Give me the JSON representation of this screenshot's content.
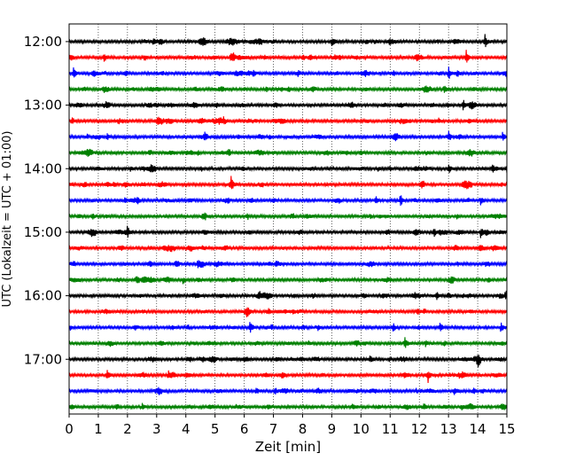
{
  "chart_data": {
    "type": "line",
    "title": "",
    "xlabel": "Zeit  [min]",
    "ylabel": "UTC (Lokalzeit = UTC + 01:00)",
    "xlim": [
      0,
      15
    ],
    "x_ticks": [
      "0",
      "1",
      "2",
      "3",
      "4",
      "5",
      "6",
      "7",
      "8",
      "9",
      "10",
      "11",
      "12",
      "13",
      "14",
      "15"
    ],
    "y_time_range": [
      "11:45",
      "17:45"
    ],
    "y_ticks": [
      "12:00",
      "13:00",
      "14:00",
      "15:00",
      "16:00",
      "17:00"
    ],
    "grid": {
      "vertical_dotted": true
    },
    "trace_interval_minutes": 15,
    "trace_color_cycle": [
      "#000000",
      "#ff0000",
      "#0000ff",
      "#008000"
    ],
    "traces": [
      {
        "start": "12:00",
        "events": [
          [
            9.0,
            1.0
          ],
          [
            14.25,
            1.2
          ]
        ]
      },
      {
        "start": "12:15",
        "events": [
          [
            1.2,
            0.8
          ],
          [
            13.6,
            1.2
          ]
        ]
      },
      {
        "start": "12:30",
        "events": [
          [
            0.15,
            0.6
          ],
          [
            6.3,
            0.8
          ],
          [
            13.0,
            1.1
          ],
          [
            13.3,
            0.8
          ],
          [
            15.0,
            0.7
          ]
        ]
      },
      {
        "start": "12:45",
        "events": [
          [
            7.5,
            0.5
          ],
          [
            12.85,
            0.8
          ]
        ]
      },
      {
        "start": "13:00",
        "events": [
          [
            13.5,
            1.1
          ]
        ]
      },
      {
        "start": "13:15",
        "events": [
          [
            0.1,
            0.6
          ],
          [
            5.3,
            0.5
          ]
        ]
      },
      {
        "start": "13:30",
        "events": [
          [
            1.3,
            0.5
          ],
          [
            13.0,
            1.0
          ],
          [
            14.85,
            0.7
          ]
        ]
      },
      {
        "start": "13:45",
        "events": [
          [
            10.0,
            0.5
          ]
        ]
      },
      {
        "start": "14:00",
        "events": [
          [
            2.1,
            0.5
          ],
          [
            13.0,
            0.9
          ],
          [
            14.5,
            1.0
          ],
          [
            15.0,
            0.6
          ]
        ]
      },
      {
        "start": "14:15",
        "events": [
          [
            5.55,
            1.4
          ]
        ]
      },
      {
        "start": "14:30",
        "events": [
          [
            1.9,
            0.6
          ],
          [
            10.5,
            0.7
          ],
          [
            11.35,
            1.1
          ],
          [
            14.1,
            0.7
          ]
        ]
      },
      {
        "start": "14:45",
        "events": [
          [
            0.8,
            0.7
          ],
          [
            6.1,
            0.6
          ]
        ]
      },
      {
        "start": "15:00",
        "events": [
          [
            2.0,
            1.2
          ],
          [
            12.5,
            0.8
          ],
          [
            14.1,
            1.0
          ]
        ]
      },
      {
        "start": "15:15",
        "events": []
      },
      {
        "start": "15:30",
        "events": [
          [
            4.4,
            0.5
          ]
        ]
      },
      {
        "start": "15:45",
        "events": [
          [
            2.3,
            0.8
          ],
          [
            3.9,
            0.7
          ]
        ]
      },
      {
        "start": "16:00",
        "events": [
          [
            7.7,
            0.4
          ],
          [
            12.6,
            0.8
          ],
          [
            14.95,
            1.0
          ]
        ]
      },
      {
        "start": "16:15",
        "events": []
      },
      {
        "start": "16:30",
        "events": [
          [
            6.2,
            1.3
          ],
          [
            11.1,
            0.8
          ],
          [
            12.7,
            0.8
          ],
          [
            14.8,
            1.1
          ]
        ]
      },
      {
        "start": "16:45",
        "events": [
          [
            11.5,
            1.1
          ],
          [
            12.2,
            0.6
          ],
          [
            8.2,
            0.4
          ]
        ]
      },
      {
        "start": "17:00",
        "events": [
          [
            14.0,
            0.6
          ],
          [
            4.9,
            0.4
          ],
          [
            10.3,
            0.4
          ]
        ]
      },
      {
        "start": "17:15",
        "events": [
          [
            1.3,
            0.9
          ],
          [
            3.4,
            0.7
          ],
          [
            12.3,
            0.8
          ]
        ]
      },
      {
        "start": "17:30",
        "events": [
          [
            6.4,
            0.6
          ],
          [
            7.05,
            0.6
          ],
          [
            13.2,
            0.7
          ]
        ]
      },
      {
        "start": "17:45",
        "events": [
          [
            9.7,
            0.5
          ],
          [
            13.45,
            0.6
          ],
          [
            2.5,
            0.5
          ]
        ]
      }
    ]
  }
}
